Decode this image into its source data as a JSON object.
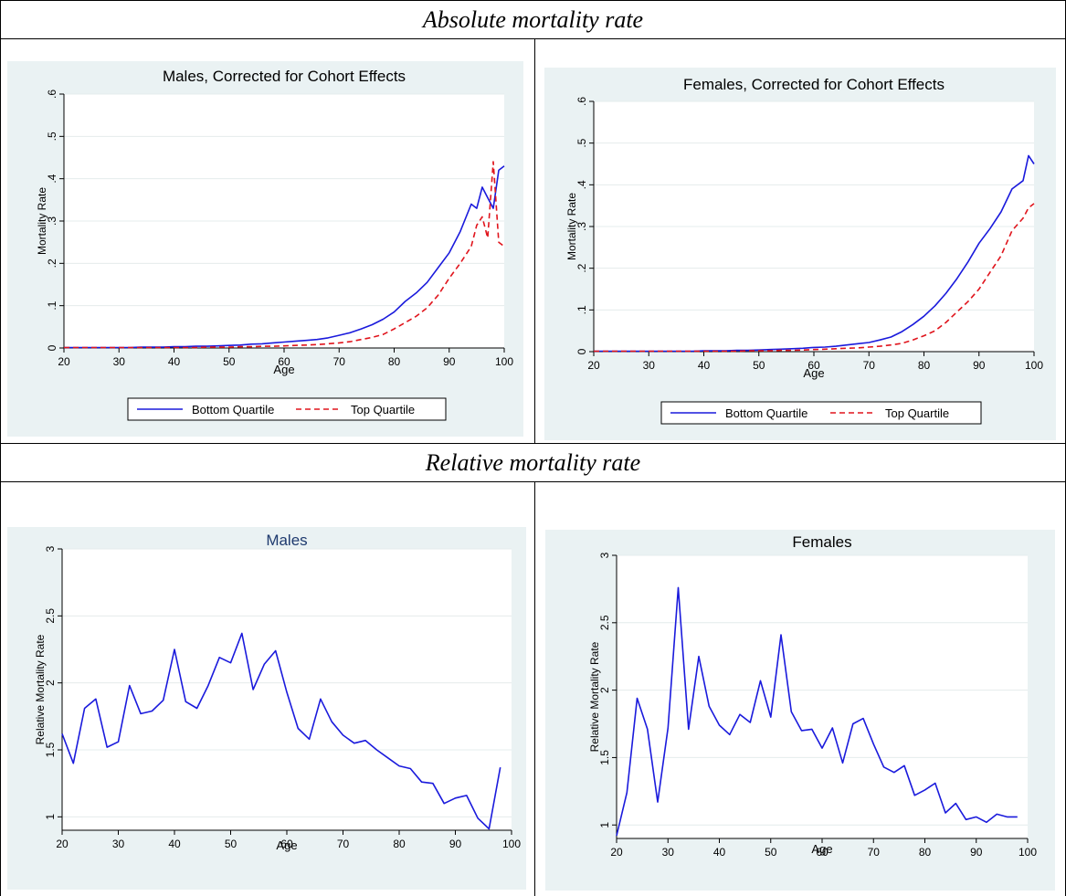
{
  "headers": {
    "absolute": "Absolute mortality rate",
    "relative": "Relative mortality rate"
  },
  "colors": {
    "bottom_quartile": "#1a1adc",
    "top_quartile": "#e0141c",
    "plot_bg": "#eaf2f3",
    "grid": "#e4ecec",
    "males_relative_title": "#1e3a6e"
  },
  "chart_data": [
    {
      "id": "males-absolute",
      "type": "line",
      "title": "Males, Corrected for Cohort Effects",
      "xlabel": "Age",
      "ylabel": "Mortality Rate",
      "xlim": [
        20,
        100
      ],
      "ylim": [
        0,
        0.6
      ],
      "xticks": [
        20,
        30,
        40,
        50,
        60,
        70,
        80,
        90,
        100
      ],
      "xtick_labels": [
        "20",
        "30",
        "40",
        "50",
        "60",
        "70",
        "80",
        "90",
        "100"
      ],
      "yticks": [
        0,
        0.1,
        0.2,
        0.3,
        0.4,
        0.5,
        0.6
      ],
      "ytick_labels": [
        "0",
        ".1",
        ".2",
        ".3",
        ".4",
        ".5",
        ".6"
      ],
      "legend": [
        "Bottom Quartile",
        "Top Quartile"
      ],
      "legend_position": "bottom",
      "grid": true,
      "series": [
        {
          "name": "Bottom Quartile",
          "style": "solid",
          "x": [
            20,
            22,
            24,
            26,
            28,
            30,
            32,
            34,
            36,
            38,
            40,
            42,
            44,
            46,
            48,
            50,
            52,
            54,
            56,
            58,
            60,
            62,
            64,
            66,
            68,
            70,
            72,
            74,
            76,
            78,
            80,
            82,
            84,
            86,
            88,
            90,
            92,
            94,
            95,
            96,
            97,
            98,
            99,
            100
          ],
          "y": [
            0.001,
            0.001,
            0.001,
            0.001,
            0.001,
            0.001,
            0.001,
            0.002,
            0.002,
            0.002,
            0.003,
            0.003,
            0.004,
            0.004,
            0.005,
            0.006,
            0.007,
            0.009,
            0.01,
            0.012,
            0.014,
            0.016,
            0.018,
            0.02,
            0.024,
            0.03,
            0.036,
            0.045,
            0.055,
            0.068,
            0.085,
            0.11,
            0.13,
            0.155,
            0.19,
            0.225,
            0.275,
            0.34,
            0.33,
            0.38,
            0.355,
            0.33,
            0.42,
            0.43
          ]
        },
        {
          "name": "Top Quartile",
          "style": "dashed",
          "x": [
            20,
            22,
            24,
            26,
            28,
            30,
            32,
            34,
            36,
            38,
            40,
            42,
            44,
            46,
            48,
            50,
            52,
            54,
            56,
            58,
            60,
            62,
            64,
            66,
            68,
            70,
            72,
            74,
            76,
            78,
            80,
            82,
            84,
            86,
            88,
            90,
            92,
            94,
            95,
            96,
            97,
            98,
            99,
            100
          ],
          "y": [
            0.001,
            0.001,
            0.001,
            0.001,
            0.001,
            0.001,
            0.001,
            0.001,
            0.001,
            0.001,
            0.001,
            0.001,
            0.001,
            0.002,
            0.002,
            0.002,
            0.003,
            0.003,
            0.004,
            0.004,
            0.005,
            0.006,
            0.007,
            0.008,
            0.01,
            0.012,
            0.015,
            0.02,
            0.025,
            0.032,
            0.045,
            0.06,
            0.075,
            0.095,
            0.125,
            0.165,
            0.2,
            0.24,
            0.29,
            0.31,
            0.26,
            0.44,
            0.25,
            0.24
          ]
        }
      ]
    },
    {
      "id": "females-absolute",
      "type": "line",
      "title": "Females, Corrected for Cohort Effects",
      "xlabel": "Age",
      "ylabel": "Mortality Rate",
      "xlim": [
        20,
        100
      ],
      "ylim": [
        0,
        0.6
      ],
      "xticks": [
        20,
        30,
        40,
        50,
        60,
        70,
        80,
        90,
        100
      ],
      "xtick_labels": [
        "20",
        "30",
        "40",
        "50",
        "60",
        "70",
        "80",
        "90",
        "100"
      ],
      "yticks": [
        0,
        0.1,
        0.2,
        0.3,
        0.4,
        0.5,
        0.6
      ],
      "ytick_labels": [
        "0",
        ".1",
        ".2",
        ".3",
        ".4",
        ".5",
        ".6"
      ],
      "legend": [
        "Bottom Quartile",
        "Top Quartile"
      ],
      "legend_position": "bottom",
      "grid": true,
      "series": [
        {
          "name": "Bottom Quartile",
          "style": "solid",
          "x": [
            20,
            22,
            24,
            26,
            28,
            30,
            32,
            34,
            36,
            38,
            40,
            42,
            44,
            46,
            48,
            50,
            52,
            54,
            56,
            58,
            60,
            62,
            64,
            66,
            68,
            70,
            72,
            74,
            76,
            78,
            80,
            82,
            84,
            86,
            88,
            90,
            92,
            94,
            96,
            98,
            99,
            100
          ],
          "y": [
            0.001,
            0.001,
            0.001,
            0.001,
            0.001,
            0.001,
            0.001,
            0.001,
            0.001,
            0.001,
            0.002,
            0.002,
            0.002,
            0.003,
            0.003,
            0.004,
            0.005,
            0.006,
            0.007,
            0.008,
            0.01,
            0.011,
            0.013,
            0.016,
            0.019,
            0.022,
            0.028,
            0.035,
            0.048,
            0.065,
            0.085,
            0.11,
            0.14,
            0.175,
            0.215,
            0.26,
            0.295,
            0.335,
            0.39,
            0.41,
            0.47,
            0.45
          ]
        },
        {
          "name": "Top Quartile",
          "style": "dashed",
          "x": [
            20,
            22,
            24,
            26,
            28,
            30,
            32,
            34,
            36,
            38,
            40,
            42,
            44,
            46,
            48,
            50,
            52,
            54,
            56,
            58,
            60,
            62,
            64,
            66,
            68,
            70,
            72,
            74,
            76,
            78,
            80,
            82,
            84,
            86,
            88,
            90,
            92,
            94,
            96,
            98,
            99,
            100
          ],
          "y": [
            0.001,
            0.001,
            0.001,
            0.001,
            0.001,
            0.001,
            0.001,
            0.001,
            0.001,
            0.001,
            0.001,
            0.001,
            0.001,
            0.001,
            0.002,
            0.002,
            0.002,
            0.003,
            0.003,
            0.004,
            0.005,
            0.006,
            0.007,
            0.008,
            0.009,
            0.011,
            0.013,
            0.016,
            0.02,
            0.028,
            0.038,
            0.05,
            0.07,
            0.095,
            0.12,
            0.15,
            0.19,
            0.23,
            0.29,
            0.32,
            0.345,
            0.355
          ]
        }
      ]
    },
    {
      "id": "males-relative",
      "type": "line",
      "title": "Males",
      "xlabel": "Age",
      "ylabel": "Relative Mortality Rate",
      "xlim": [
        20,
        100
      ],
      "ylim": [
        0.9,
        3.0
      ],
      "xticks": [
        20,
        30,
        40,
        50,
        60,
        70,
        80,
        90,
        100
      ],
      "xtick_labels": [
        "20",
        "30",
        "40",
        "50",
        "60",
        "70",
        "80",
        "90",
        "100"
      ],
      "yticks": [
        1,
        1.5,
        2,
        2.5,
        3
      ],
      "ytick_labels": [
        "1",
        "1.5",
        "2",
        "2.5",
        "3"
      ],
      "grid": true,
      "series": [
        {
          "style": "solid",
          "x": [
            20,
            22,
            24,
            26,
            28,
            30,
            32,
            34,
            36,
            38,
            40,
            42,
            44,
            46,
            48,
            50,
            52,
            54,
            56,
            58,
            60,
            62,
            64,
            66,
            68,
            70,
            72,
            74,
            76,
            78,
            80,
            82,
            84,
            86,
            88,
            90,
            92,
            94,
            96,
            98
          ],
          "y": [
            1.62,
            1.4,
            1.81,
            1.88,
            1.52,
            1.56,
            1.98,
            1.77,
            1.79,
            1.87,
            2.25,
            1.86,
            1.81,
            1.98,
            2.19,
            2.15,
            2.37,
            1.95,
            2.14,
            2.24,
            1.93,
            1.66,
            1.58,
            1.88,
            1.71,
            1.61,
            1.55,
            1.57,
            1.5,
            1.44,
            1.38,
            1.36,
            1.26,
            1.25,
            1.1,
            1.14,
            1.16,
            0.99,
            0.91,
            1.37
          ]
        }
      ]
    },
    {
      "id": "females-relative",
      "type": "line",
      "title": "Females",
      "xlabel": "Age",
      "ylabel": "Relative Mortality Rate",
      "xlim": [
        20,
        100
      ],
      "ylim": [
        0.9,
        3.0
      ],
      "xticks": [
        20,
        30,
        40,
        50,
        60,
        70,
        80,
        90,
        100
      ],
      "xtick_labels": [
        "20",
        "30",
        "40",
        "50",
        "60",
        "70",
        "80",
        "90",
        "100"
      ],
      "yticks": [
        1,
        1.5,
        2,
        2.5,
        3
      ],
      "ytick_labels": [
        "1",
        "1.5",
        "2",
        "2.5",
        "3"
      ],
      "grid": true,
      "series": [
        {
          "style": "solid",
          "x": [
            20,
            22,
            24,
            26,
            28,
            30,
            32,
            34,
            36,
            38,
            40,
            42,
            44,
            46,
            48,
            50,
            52,
            54,
            56,
            58,
            60,
            62,
            64,
            66,
            68,
            70,
            72,
            74,
            76,
            78,
            80,
            82,
            84,
            86,
            88,
            90,
            92,
            94,
            96,
            98
          ],
          "y": [
            0.92,
            1.24,
            1.94,
            1.71,
            1.17,
            1.72,
            2.76,
            1.71,
            2.25,
            1.88,
            1.74,
            1.67,
            1.82,
            1.76,
            2.07,
            1.8,
            2.41,
            1.84,
            1.7,
            1.71,
            1.57,
            1.72,
            1.46,
            1.75,
            1.79,
            1.6,
            1.43,
            1.39,
            1.44,
            1.22,
            1.26,
            1.31,
            1.09,
            1.16,
            1.04,
            1.06,
            1.02,
            1.08,
            1.06,
            1.06
          ]
        }
      ]
    }
  ]
}
